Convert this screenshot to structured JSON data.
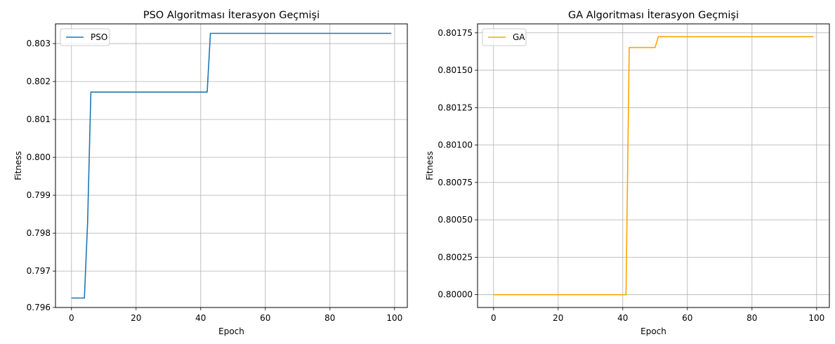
{
  "chart_data": [
    {
      "type": "line",
      "title": "PSO Algoritması İterasyon Geçmişi",
      "xlabel": "Epoch",
      "ylabel": "Fitness",
      "xlim": [
        -4.95,
        103.95
      ],
      "ylim": [
        0.79604,
        0.80352
      ],
      "xticks": [
        0,
        20,
        40,
        60,
        80,
        100
      ],
      "xtick_labels": [
        "0",
        "20",
        "40",
        "60",
        "80",
        "100"
      ],
      "yticks": [
        0.797,
        0.798,
        0.799,
        0.8,
        0.801,
        0.802,
        0.803
      ],
      "ytick_labels": [
        "0.797",
        "0.798",
        "0.799",
        "0.800",
        "0.801",
        "0.802",
        "0.803"
      ],
      "extra_ytick_labels": [
        {
          "value": 0.79604,
          "label": "0.796"
        }
      ],
      "grid": true,
      "legend": "upper-left",
      "series": [
        {
          "name": "PSO",
          "color": "#1f77b4",
          "x": [
            0,
            4,
            5,
            6,
            42,
            43,
            99
          ],
          "y": [
            0.79629,
            0.79629,
            0.7983,
            0.80172,
            0.80172,
            0.80327,
            0.80327
          ]
        }
      ]
    },
    {
      "type": "line",
      "title": "GA Algoritması İterasyon Geçmişi",
      "xlabel": "Epoch",
      "ylabel": "Fitness",
      "xlim": [
        -4.95,
        103.95
      ],
      "ylim": [
        0.799914,
        0.80181
      ],
      "xticks": [
        0,
        20,
        40,
        60,
        80,
        100
      ],
      "xtick_labels": [
        "0",
        "20",
        "40",
        "60",
        "80",
        "100"
      ],
      "yticks": [
        0.8,
        0.80025,
        0.8005,
        0.80075,
        0.801,
        0.80125,
        0.8015,
        0.80175
      ],
      "ytick_labels": [
        "0.80000",
        "0.80025",
        "0.80050",
        "0.80075",
        "0.80100",
        "0.80125",
        "0.80150",
        "0.80175"
      ],
      "grid": true,
      "legend": "upper-left",
      "series": [
        {
          "name": "GA",
          "color": "#ffa500",
          "x": [
            0,
            41,
            42,
            50,
            51,
            99
          ],
          "y": [
            0.8,
            0.8,
            0.801652,
            0.801652,
            0.801724,
            0.801724
          ]
        }
      ]
    }
  ]
}
